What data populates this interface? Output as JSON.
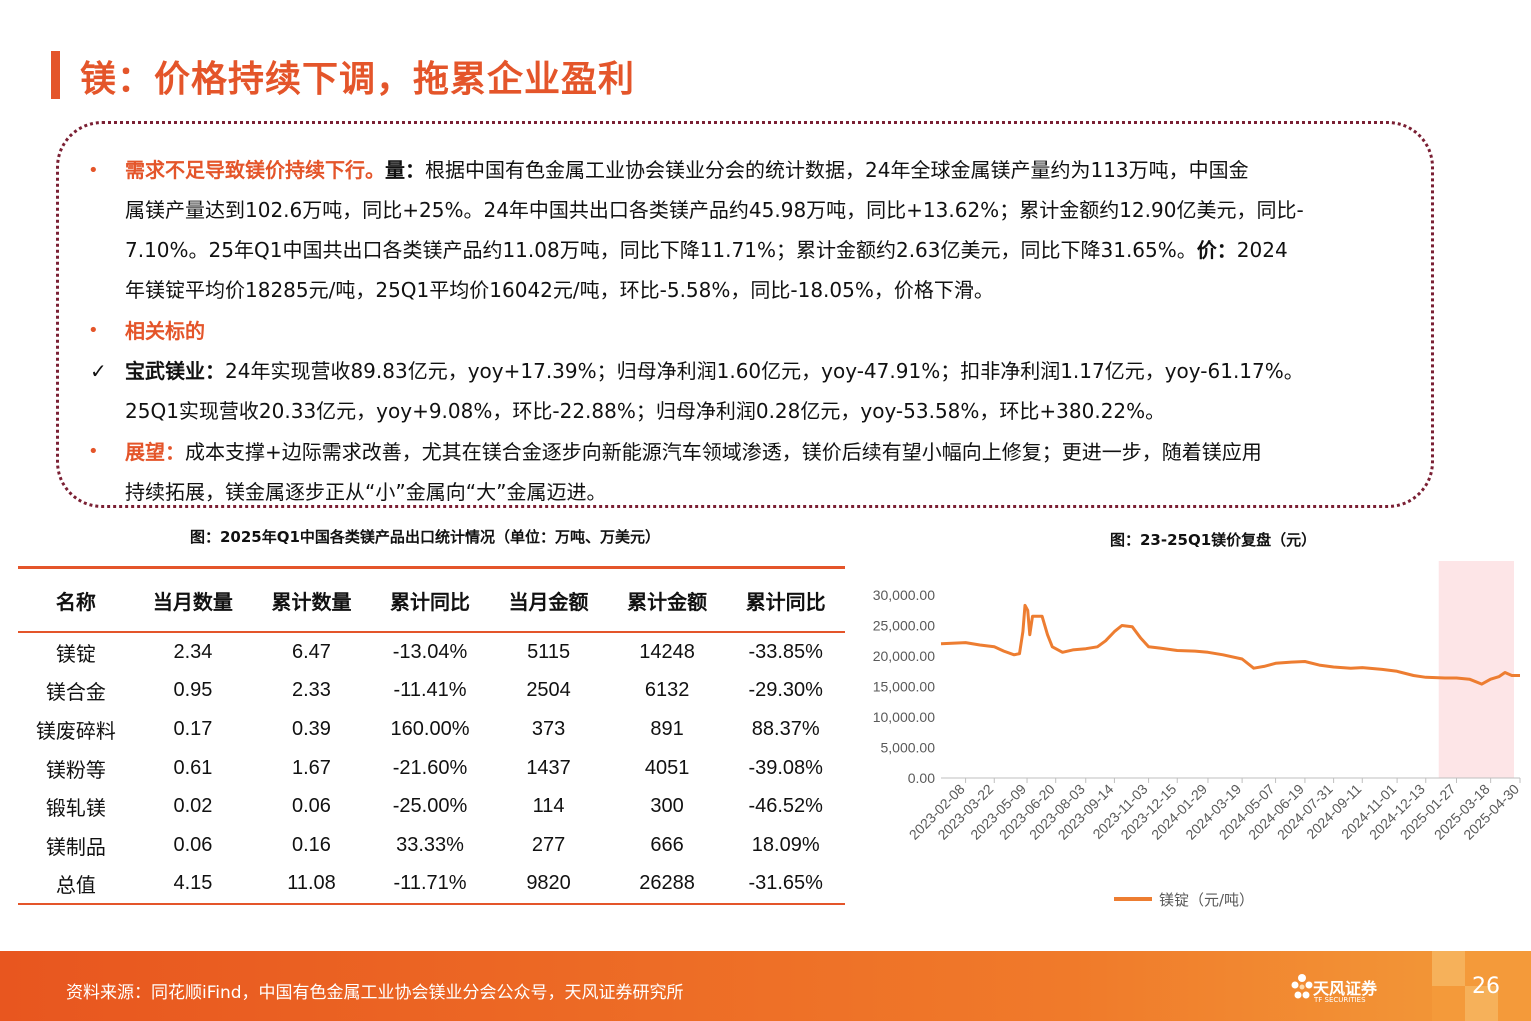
{
  "title": "镁：价格持续下调，拖累企业盈利",
  "text": {
    "p1_lead": "需求不足导致镁价持续下行。",
    "p1_k1": "量：",
    "p1_l1": "根据中国有色金属工业协会镁业分会的统计数据，24年全球金属镁产量约为113万吨，中国金",
    "p1_l2": "属镁产量达到102.6万吨，同比+25%。24年中国共出口各类镁产品约45.98万吨，同比+13.62%；累计金额约12.90亿美元，同比-",
    "p1_l3": "7.10%。25年Q1中国共出口各类镁产品约11.08万吨，同比下降11.71%；累计金额约2.63亿美元，同比下降31.65%。",
    "p1_k2": "价：",
    "p1_l3b": "2024",
    "p1_l4": "年镁锭平均价18285元/吨，25Q1平均价16042元/吨，环比-5.58%，同比-18.05%，价格下滑。",
    "p2_lead": "相关标的",
    "p3_k": "宝武镁业：",
    "p3_l1": "24年实现营收89.83亿元，yoy+17.39%；归母净利润1.60亿元，yoy-47.91%；扣非净利润1.17亿元，yoy-61.17%。",
    "p3_l2": "25Q1实现营收20.33亿元，yoy+9.08%，环比-22.88%；归母净利润0.28亿元，yoy-53.58%，环比+380.22%。",
    "p4_k": "展望：",
    "p4_l1": "成本支撑+边际需求改善，尤其在镁合金逐步向新能源汽车领域渗透，镁价后续有望小幅向上修复；更进一步，随着镁应用",
    "p4_l2": "持续拓展，镁金属逐步正从“小”金属向“大”金属迈进。"
  },
  "table": {
    "caption": "图：2025年Q1中国各类镁产品出口统计情况（单位：万吨、万美元）",
    "headers": [
      "名称",
      "当月数量",
      "累计数量",
      "累计同比",
      "当月金额",
      "累计金额",
      "累计同比"
    ],
    "rows": [
      [
        "镁锭",
        "2.34",
        "6.47",
        "-13.04%",
        "5115",
        "14248",
        "-33.85%"
      ],
      [
        "镁合金",
        "0.95",
        "2.33",
        "-11.41%",
        "2504",
        "6132",
        "-29.30%"
      ],
      [
        "镁废碎料",
        "0.17",
        "0.39",
        "160.00%",
        "373",
        "891",
        "88.37%"
      ],
      [
        "镁粉等",
        "0.61",
        "1.67",
        "-21.60%",
        "1437",
        "4051",
        "-39.08%"
      ],
      [
        "锻轧镁",
        "0.02",
        "0.06",
        "-25.00%",
        "114",
        "300",
        "-46.52%"
      ],
      [
        "镁制品",
        "0.06",
        "0.16",
        "33.33%",
        "277",
        "666",
        "18.09%"
      ],
      [
        "总值",
        "4.15",
        "11.08",
        "-11.71%",
        "9820",
        "26288",
        "-31.65%"
      ]
    ]
  },
  "chart_data": {
    "type": "line",
    "title": "图：23-25Q1镁价复盘（元）",
    "ylim": [
      0,
      30000
    ],
    "yticks": [
      "30,000.00",
      "25,000.00",
      "20,000.00",
      "15,000.00",
      "10,000.00",
      "5,000.00",
      "0.00"
    ],
    "xticks": [
      "2023-02-08",
      "2023-03-22",
      "2023-05-09",
      "2023-06-20",
      "2023-08-03",
      "2023-09-14",
      "2023-11-03",
      "2023-12-15",
      "2024-01-29",
      "2024-03-19",
      "2024-05-07",
      "2024-06-19",
      "2024-07-31",
      "2024-09-11",
      "2024-11-01",
      "2024-12-13",
      "2025-01-27",
      "2025-03-18",
      "2025-04-30"
    ],
    "highlight": [
      "2025-01-01",
      "2025-04-30"
    ],
    "series": [
      {
        "name": "镁锭（元/吨）",
        "color": "#ed7d31",
        "points": [
          [
            "2023-01-03",
            22000
          ],
          [
            "2023-02-08",
            22200
          ],
          [
            "2023-03-01",
            21800
          ],
          [
            "2023-03-22",
            21500
          ],
          [
            "2023-04-05",
            20800
          ],
          [
            "2023-04-20",
            20200
          ],
          [
            "2023-04-28",
            20400
          ],
          [
            "2023-05-03",
            24000
          ],
          [
            "2023-05-06",
            28300
          ],
          [
            "2023-05-10",
            27500
          ],
          [
            "2023-05-13",
            23500
          ],
          [
            "2023-05-17",
            26500
          ],
          [
            "2023-05-31",
            26500
          ],
          [
            "2023-06-08",
            23500
          ],
          [
            "2023-06-15",
            21500
          ],
          [
            "2023-06-30",
            20600
          ],
          [
            "2023-07-15",
            21000
          ],
          [
            "2023-08-03",
            21200
          ],
          [
            "2023-08-20",
            21500
          ],
          [
            "2023-09-01",
            22500
          ],
          [
            "2023-09-14",
            24000
          ],
          [
            "2023-09-25",
            25000
          ],
          [
            "2023-10-10",
            24800
          ],
          [
            "2023-10-22",
            23000
          ],
          [
            "2023-11-03",
            21500
          ],
          [
            "2023-11-20",
            21300
          ],
          [
            "2023-12-15",
            20900
          ],
          [
            "2024-01-10",
            20800
          ],
          [
            "2024-01-29",
            20600
          ],
          [
            "2024-02-20",
            20200
          ],
          [
            "2024-03-19",
            19500
          ],
          [
            "2024-04-05",
            18000
          ],
          [
            "2024-04-20",
            18300
          ],
          [
            "2024-05-07",
            18800
          ],
          [
            "2024-05-30",
            19000
          ],
          [
            "2024-06-19",
            19100
          ],
          [
            "2024-07-10",
            18500
          ],
          [
            "2024-07-31",
            18200
          ],
          [
            "2024-08-25",
            18000
          ],
          [
            "2024-09-11",
            18100
          ],
          [
            "2024-10-10",
            17800
          ],
          [
            "2024-11-01",
            17500
          ],
          [
            "2024-11-25",
            16800
          ],
          [
            "2024-12-13",
            16500
          ],
          [
            "2025-01-10",
            16400
          ],
          [
            "2025-01-27",
            16400
          ],
          [
            "2025-02-15",
            16200
          ],
          [
            "2025-03-05",
            15400
          ],
          [
            "2025-03-18",
            16200
          ],
          [
            "2025-03-30",
            16600
          ],
          [
            "2025-04-08",
            17300
          ],
          [
            "2025-04-18",
            16800
          ],
          [
            "2025-04-30",
            16800
          ]
        ]
      }
    ]
  },
  "footer": {
    "source": "资料来源：同花顺iFind，中国有色金属工业协会镁业分会公众号，天风证券研究所",
    "brand": "天风证券",
    "brand_en": "TF SECURITIES",
    "page": "26"
  },
  "colors": {
    "accent": "#e4552a",
    "line": "#ed7d31",
    "border": "#7a1f33",
    "highlight": "#fde5e7"
  }
}
